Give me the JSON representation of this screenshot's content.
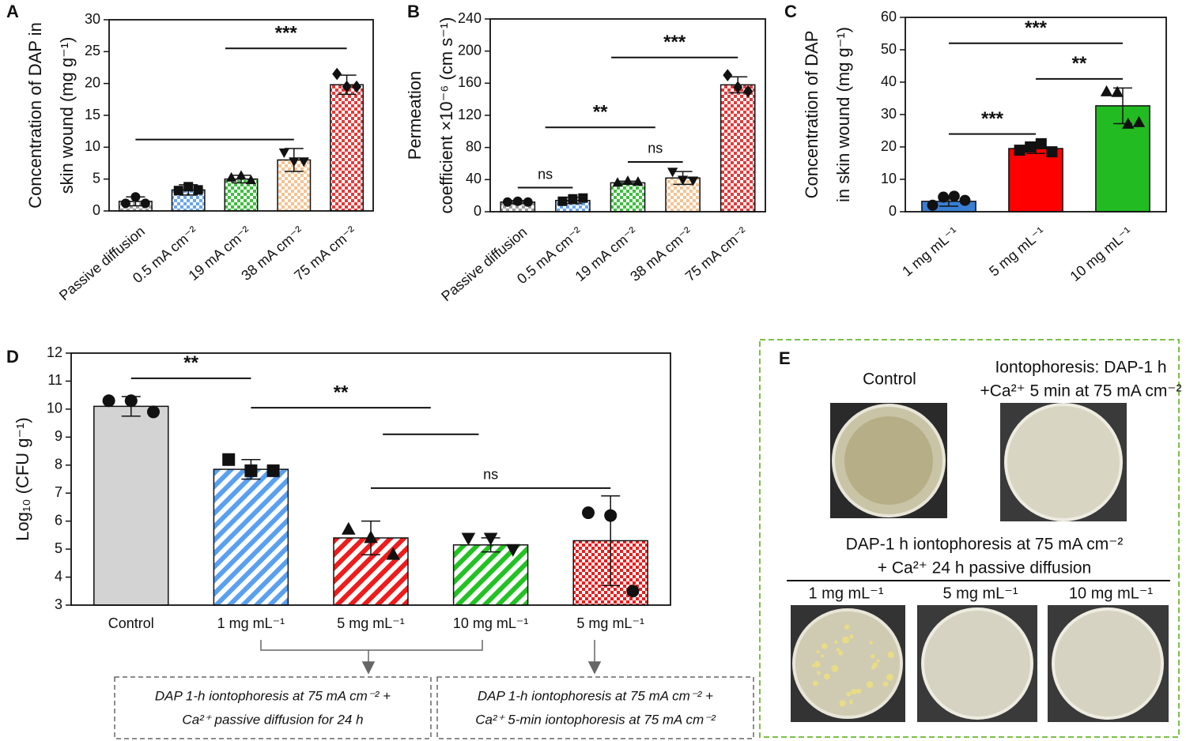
{
  "chart_data": [
    {
      "type": "bar",
      "panel": "A",
      "ylabel": [
        "Concentration of DAP in",
        "skin wound (mg g⁻¹)"
      ],
      "categories": [
        "Passive diffusion",
        "0.5 mA cm⁻²",
        "19 mA cm⁻²",
        "38 mA cm⁻²",
        "75 mA cm⁻²"
      ],
      "values": [
        1.5,
        3.3,
        5.0,
        8.0,
        19.8
      ],
      "errors": [
        0.7,
        0.8,
        0.6,
        1.8,
        1.5
      ],
      "points": [
        [
          1.2,
          2.2,
          1.2
        ],
        [
          3.2,
          3.8,
          3.3
        ],
        [
          5.2,
          5.5,
          4.8
        ],
        [
          9.2,
          7.8,
          7.8
        ],
        [
          21.5,
          19.5,
          19.5
        ]
      ],
      "markers": [
        "circle",
        "square",
        "triangle",
        "triangle-down",
        "diamond"
      ],
      "colors": [
        "#9e9e9e",
        "#6aa7ea",
        "#3fbf3f",
        "#f3c393",
        "#e53a3a"
      ],
      "patterns": [
        "checker",
        "checker",
        "checker",
        "checker",
        "checker"
      ],
      "ylim": [
        0,
        30
      ],
      "yticks": [
        0,
        5,
        10,
        15,
        20,
        25,
        30
      ],
      "annotations": [
        {
          "x": [
            0,
            3
          ],
          "y": 11.2
        },
        {
          "label": "***",
          "x": [
            1.7,
            4
          ],
          "y": 25.5
        }
      ]
    },
    {
      "type": "bar",
      "panel": "B",
      "ylabel": [
        "Permeation",
        "coefficient ×10⁻⁶ (cm s⁻¹)"
      ],
      "categories": [
        "Passive diffusion",
        "0.5 mA cm⁻²",
        "19 mA cm⁻²",
        "38  mA cm⁻²",
        "75  mA cm⁻²"
      ],
      "values": [
        12,
        14,
        36,
        42,
        158
      ],
      "errors": [
        2,
        4,
        2,
        8,
        10
      ],
      "points": [
        [
          12,
          13,
          12
        ],
        [
          13,
          16,
          17
        ],
        [
          36,
          38,
          37
        ],
        [
          50,
          40,
          39
        ],
        [
          170,
          155,
          150
        ]
      ],
      "markers": [
        "circle",
        "square",
        "triangle",
        "triangle-down",
        "diamond"
      ],
      "colors": [
        "#9e9e9e",
        "#6aa7ea",
        "#3fbf3f",
        "#f3c393",
        "#e53a3a"
      ],
      "patterns": [
        "checker",
        "checker",
        "checker",
        "checker",
        "checker"
      ],
      "ylim": [
        0,
        240
      ],
      "yticks": [
        0,
        40,
        80,
        120,
        160,
        200,
        240
      ],
      "annotations": [
        {
          "label": "ns",
          "x": [
            0,
            1
          ],
          "y": 30
        },
        {
          "label": "ns",
          "x": [
            2,
            3
          ],
          "y": 62
        },
        {
          "label": "**",
          "x": [
            0.5,
            2.5
          ],
          "y": 105
        },
        {
          "label": "***",
          "x": [
            1.7,
            4
          ],
          "y": 192
        }
      ]
    },
    {
      "type": "bar",
      "panel": "C",
      "ylabel": [
        "Concentration of DAP",
        "in skin wound (mg g⁻¹)"
      ],
      "categories": [
        "1 mg mL⁻¹",
        "5 mg mL⁻¹",
        "10 mg mL⁻¹"
      ],
      "values": [
        3.2,
        19.5,
        32.7
      ],
      "errors": [
        1.5,
        1.5,
        5.5
      ],
      "points": [
        [
          2,
          4.5,
          4.8,
          3.5
        ],
        [
          19,
          20,
          21,
          18.5
        ],
        [
          37,
          36.8,
          27,
          27.5
        ]
      ],
      "markers": [
        "circle",
        "square",
        "triangle"
      ],
      "colors": [
        "#3a7fd5",
        "#ff0000",
        "#22bb22"
      ],
      "patterns": [
        "solid",
        "solid",
        "solid"
      ],
      "ylim": [
        0,
        60
      ],
      "yticks": [
        0,
        10,
        20,
        30,
        40,
        50,
        60
      ],
      "annotations": [
        {
          "label": "***",
          "x": [
            0,
            1
          ],
          "y": 24
        },
        {
          "label": "**",
          "x": [
            1,
            2
          ],
          "y": 41
        },
        {
          "label": "***",
          "x": [
            0,
            2
          ],
          "y": 52
        }
      ]
    },
    {
      "type": "bar",
      "panel": "D",
      "ylabel": [
        "Log₁₀ (CFU g⁻¹)"
      ],
      "categories": [
        "Control",
        "1 mg mL⁻¹",
        "5  mg mL⁻¹",
        "10  mg mL⁻¹",
        "5  mg mL⁻¹"
      ],
      "values": [
        10.1,
        7.85,
        5.4,
        5.15,
        5.3
      ],
      "errors": [
        0.35,
        0.35,
        0.6,
        0.25,
        1.6
      ],
      "points": [
        [
          10.3,
          10.3,
          9.9
        ],
        [
          8.2,
          7.8,
          7.8
        ],
        [
          5.7,
          5.4,
          4.8
        ],
        [
          5.4,
          5.4,
          5.0
        ],
        [
          6.3,
          6.2,
          3.5
        ]
      ],
      "markers": [
        "circle",
        "square",
        "triangle",
        "triangle-down",
        "circle"
      ],
      "colors": [
        "#d3d3d3",
        "#5aa0f0",
        "#ee1c1c",
        "#22c222",
        "#ee1c1c"
      ],
      "patterns": [
        "solid",
        "stripe",
        "stripe",
        "stripe",
        "checker"
      ],
      "ylim": [
        3,
        12
      ],
      "yticks": [
        3,
        4,
        5,
        6,
        7,
        8,
        9,
        10,
        11,
        12
      ],
      "annotations": [
        {
          "label": "**",
          "x": [
            0,
            1
          ],
          "y": 11.1
        },
        {
          "label": "**",
          "x": [
            1,
            2.5
          ],
          "y": 10.05
        },
        {
          "x": [
            2.1,
            2.9
          ],
          "y": 9.1
        },
        {
          "label": "ns",
          "x": [
            2,
            4
          ],
          "y": 7.18
        }
      ],
      "notes": [
        [
          "DAP 1-h iontophoresis at 75 mA cm⁻² +",
          "Ca²⁺ passive diffusion for 24 h"
        ],
        [
          "DAP 1-h iontophoresis at 75 mA cm⁻² +",
          "Ca²⁺ 5-min iontophoresis at  75 mA cm⁻²"
        ]
      ]
    }
  ],
  "panel_e": {
    "label": "E",
    "control": "Control",
    "treated": [
      "Iontophoresis: DAP-1 h",
      "+Ca²⁺ 5 min at 75 mA cm⁻²"
    ],
    "subtitle": [
      "DAP-1 h iontophoresis at 75 mA cm⁻²",
      "+ Ca²⁺ 24 h  passive diffusion"
    ],
    "plates": [
      "1 mg mL⁻¹",
      "5 mg mL⁻¹",
      "10 mg mL⁻¹"
    ]
  }
}
